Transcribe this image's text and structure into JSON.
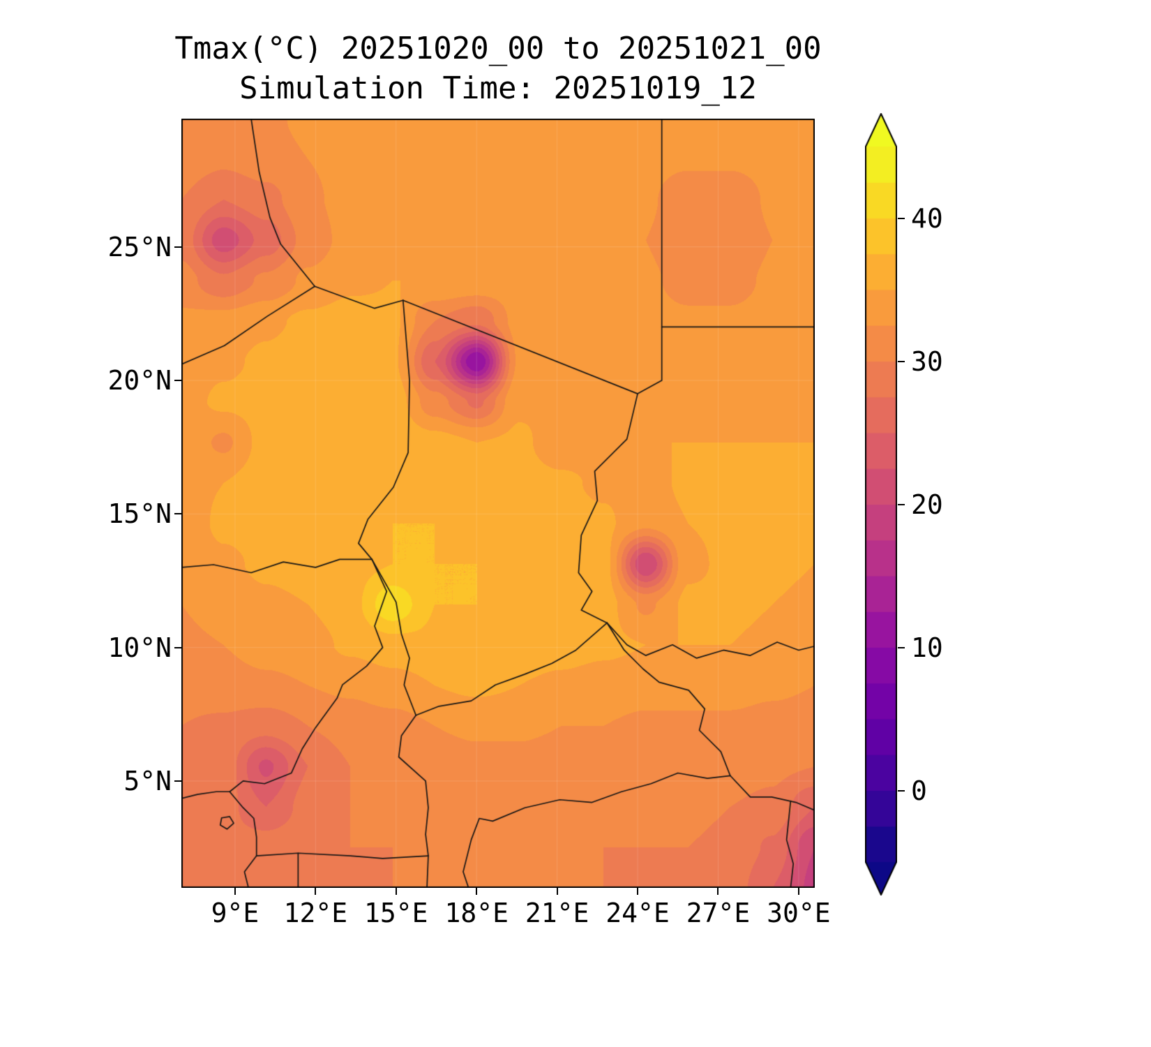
{
  "title": "Tmax(°C) 20251020_00 to 20251021_00",
  "subtitle": "Simulation Time: 20251019_12",
  "colors": {
    "background": "#ffffff",
    "frame": "#000000",
    "text": "#000000",
    "border_lines": "#151515",
    "gridline": "rgba(255,255,255,0.15)"
  },
  "chart_data": {
    "type": "heatmap",
    "variable": "Tmax",
    "units": "°C",
    "valid_period": "20251020_00 to 20251021_00",
    "simulation_time": "20251019_12",
    "lon_range": [
      7.0,
      30.6
    ],
    "lat_range": [
      1.0,
      29.8
    ],
    "x_ticks": [
      {
        "v": 9,
        "label": "9°E"
      },
      {
        "v": 12,
        "label": "12°E"
      },
      {
        "v": 15,
        "label": "15°E"
      },
      {
        "v": 18,
        "label": "18°E"
      },
      {
        "v": 21,
        "label": "21°E"
      },
      {
        "v": 24,
        "label": "24°E"
      },
      {
        "v": 27,
        "label": "27°E"
      },
      {
        "v": 30,
        "label": "30°E"
      }
    ],
    "y_ticks": [
      {
        "v": 5,
        "label": "5°N"
      },
      {
        "v": 10,
        "label": "10°N"
      },
      {
        "v": 15,
        "label": "15°N"
      },
      {
        "v": 20,
        "label": "20°N"
      },
      {
        "v": 25,
        "label": "25°N"
      }
    ],
    "colorbar": {
      "colormap": "plasma",
      "vmin": -5,
      "vmax": 45,
      "step": 2.5,
      "extend": "both",
      "ticks": [
        {
          "v": 0,
          "label": "0"
        },
        {
          "v": 10,
          "label": "10"
        },
        {
          "v": 20,
          "label": "20"
        },
        {
          "v": 30,
          "label": "30"
        },
        {
          "v": 40,
          "label": "40"
        }
      ],
      "stops": [
        "#0d0887",
        "#41049d",
        "#6a00a8",
        "#8f0da4",
        "#b12a90",
        "#cc4778",
        "#e16462",
        "#f1834c",
        "#fca338",
        "#fcce25",
        "#f0f921"
      ]
    },
    "grid": {
      "lons": [
        7.0,
        8.57,
        10.15,
        11.72,
        13.29,
        14.87,
        16.44,
        18.01,
        19.59,
        21.16,
        22.73,
        24.31,
        25.88,
        27.45,
        29.03,
        30.6
      ],
      "lats": [
        29.8,
        28.28,
        26.77,
        25.25,
        23.74,
        22.22,
        20.71,
        19.19,
        17.67,
        16.16,
        14.64,
        13.13,
        11.61,
        10.09,
        8.58,
        7.06,
        5.55,
        4.03,
        2.52,
        1.0
      ],
      "values": [
        [
          32,
          31.5,
          32,
          33,
          33.5,
          34,
          34,
          34,
          34,
          33.5,
          33.5,
          33.5,
          33.5,
          33.5,
          34,
          34
        ],
        [
          31.5,
          30.5,
          31.5,
          32.5,
          33.5,
          34,
          34,
          34,
          34,
          33.5,
          33.5,
          33.5,
          33,
          33,
          33.5,
          34
        ],
        [
          30,
          27.5,
          29,
          32,
          33.5,
          34,
          34,
          34,
          34,
          34,
          33.5,
          33,
          30.5,
          30.5,
          33,
          33.5
        ],
        [
          29,
          21,
          26,
          31,
          33.5,
          34.5,
          34.5,
          34.5,
          34,
          34,
          33.5,
          32.5,
          30,
          30,
          32.5,
          33.5
        ],
        [
          31,
          28,
          30.5,
          33,
          34.5,
          35,
          35,
          34.5,
          34,
          34,
          33.5,
          33,
          31.5,
          31.5,
          33,
          33.5
        ],
        [
          33,
          33.5,
          34.5,
          35.5,
          36,
          35.5,
          30,
          28,
          33.5,
          34,
          34,
          33.5,
          33,
          33,
          33.5,
          33.5
        ],
        [
          33.5,
          34.5,
          35.5,
          36.5,
          36.5,
          35.5,
          25,
          10,
          33,
          34,
          34.5,
          34,
          33.5,
          33.5,
          34,
          34
        ],
        [
          34,
          35.5,
          36,
          36.5,
          37,
          36.5,
          31,
          27,
          34.5,
          35,
          35,
          34.5,
          34,
          34.5,
          34.5,
          34.5
        ],
        [
          34.5,
          32,
          36,
          37,
          37,
          37,
          36,
          35,
          35.5,
          33.5,
          34,
          35,
          35,
          35,
          35,
          35
        ],
        [
          34,
          35,
          36.5,
          37,
          37,
          37.5,
          37,
          36.5,
          36,
          35.5,
          34.5,
          34,
          35.5,
          35.5,
          35.5,
          35
        ],
        [
          33.5,
          35.5,
          36,
          36.5,
          37,
          37.5,
          37.5,
          37,
          36.5,
          36,
          35.5,
          33,
          35,
          35.5,
          35.5,
          35
        ],
        [
          33,
          34.5,
          35.5,
          36,
          36.5,
          37.5,
          37.5,
          37.5,
          37,
          36.5,
          36,
          20,
          34.5,
          35.5,
          35.5,
          35
        ],
        [
          32.5,
          33.5,
          34.5,
          35,
          36.5,
          42,
          37.5,
          37.5,
          37,
          36.5,
          36,
          32,
          35.5,
          35.5,
          35,
          34.5
        ],
        [
          32,
          32.5,
          33.5,
          34,
          35.5,
          36.5,
          37,
          37,
          36.5,
          36,
          35.5,
          35,
          35,
          35,
          34.5,
          34
        ],
        [
          31,
          31.5,
          32,
          32.5,
          33,
          34,
          35,
          35.5,
          35,
          34.5,
          34,
          33.5,
          33.5,
          33.5,
          33,
          32.5
        ],
        [
          30,
          29.5,
          28.5,
          30,
          31,
          31.5,
          32.5,
          33,
          33,
          32.5,
          32.5,
          32,
          32,
          32,
          31.5,
          31
        ],
        [
          29.5,
          29,
          22,
          27.5,
          30,
          30.5,
          31,
          31.5,
          31.5,
          31,
          31,
          31,
          31,
          31,
          30.5,
          30
        ],
        [
          29,
          28.5,
          25,
          28.5,
          30,
          30.5,
          30.5,
          31,
          31,
          30.5,
          30.5,
          30.5,
          30.5,
          30,
          29.5,
          25
        ],
        [
          29,
          28.5,
          29,
          29.5,
          30,
          30,
          30.5,
          30.5,
          30.5,
          30.5,
          30,
          30,
          30,
          29.5,
          27,
          20
        ],
        [
          29,
          29,
          29.5,
          29.5,
          29.5,
          30,
          30,
          30,
          30,
          30,
          30,
          29.5,
          29.5,
          29,
          25,
          19
        ]
      ]
    },
    "borders": [
      {
        "name": "algeria-libya",
        "points": [
          [
            9.6,
            29.8
          ],
          [
            9.9,
            27.8
          ],
          [
            10.3,
            26.1
          ],
          [
            10.7,
            25.1
          ],
          [
            11.97,
            23.52
          ]
        ]
      },
      {
        "name": "algeria-niger",
        "points": [
          [
            11.97,
            23.52
          ],
          [
            10.2,
            22.4
          ],
          [
            8.6,
            21.3
          ],
          [
            7.0,
            20.6
          ]
        ]
      },
      {
        "name": "niger-libya",
        "points": [
          [
            11.97,
            23.52
          ],
          [
            14.2,
            22.7
          ],
          [
            15.26,
            23.0
          ]
        ]
      },
      {
        "name": "libya-chad",
        "points": [
          [
            15.26,
            23.0
          ],
          [
            24.0,
            19.5
          ]
        ]
      },
      {
        "name": "libya-egypt",
        "points": [
          [
            24.9,
            29.8
          ],
          [
            24.9,
            22.0
          ]
        ]
      },
      {
        "name": "libya-sudan",
        "points": [
          [
            24.9,
            22.0
          ],
          [
            24.9,
            20.0
          ],
          [
            24.0,
            19.5
          ]
        ]
      },
      {
        "name": "egypt-sudan",
        "points": [
          [
            24.9,
            22.0
          ],
          [
            30.6,
            22.0
          ]
        ]
      },
      {
        "name": "chad-sudan",
        "points": [
          [
            24.0,
            19.5
          ],
          [
            23.6,
            17.8
          ],
          [
            22.4,
            16.6
          ],
          [
            22.5,
            15.5
          ],
          [
            21.9,
            14.2
          ],
          [
            21.8,
            12.8
          ],
          [
            22.3,
            12.1
          ],
          [
            21.9,
            11.4
          ],
          [
            22.86,
            10.92
          ]
        ]
      },
      {
        "name": "niger-chad",
        "points": [
          [
            15.26,
            23.0
          ],
          [
            15.5,
            20.0
          ],
          [
            15.45,
            17.3
          ],
          [
            14.9,
            16.0
          ],
          [
            13.95,
            14.8
          ],
          [
            13.6,
            13.9
          ],
          [
            14.1,
            13.3
          ]
        ]
      },
      {
        "name": "niger-nigeria",
        "points": [
          [
            7.0,
            13.0
          ],
          [
            8.2,
            13.1
          ],
          [
            9.6,
            12.8
          ],
          [
            10.8,
            13.2
          ],
          [
            12.0,
            13.0
          ],
          [
            12.9,
            13.3
          ],
          [
            13.6,
            13.3
          ],
          [
            14.1,
            13.3
          ]
        ]
      },
      {
        "name": "nigeria-cameroon",
        "points": [
          [
            14.1,
            13.3
          ],
          [
            14.65,
            12.1
          ],
          [
            14.2,
            10.8
          ],
          [
            14.5,
            10.0
          ],
          [
            13.9,
            9.3
          ],
          [
            13.0,
            8.6
          ],
          [
            12.8,
            8.1
          ],
          [
            12.0,
            7.0
          ],
          [
            11.5,
            6.2
          ],
          [
            11.1,
            5.3
          ],
          [
            10.1,
            4.9
          ],
          [
            9.3,
            5.0
          ],
          [
            8.8,
            4.6
          ]
        ]
      },
      {
        "name": "chad-cameroon",
        "points": [
          [
            14.1,
            13.3
          ],
          [
            15.0,
            11.7
          ],
          [
            15.2,
            10.5
          ],
          [
            15.5,
            9.6
          ],
          [
            15.3,
            8.6
          ],
          [
            15.74,
            7.46
          ]
        ]
      },
      {
        "name": "chad-car",
        "points": [
          [
            15.74,
            7.46
          ],
          [
            16.6,
            7.8
          ],
          [
            17.8,
            8.0
          ],
          [
            18.7,
            8.6
          ],
          [
            19.8,
            9.0
          ],
          [
            20.8,
            9.4
          ],
          [
            21.7,
            9.9
          ],
          [
            22.86,
            10.92
          ]
        ]
      },
      {
        "name": "cameroon-car",
        "points": [
          [
            15.74,
            7.46
          ],
          [
            15.2,
            6.7
          ],
          [
            15.1,
            5.9
          ],
          [
            16.1,
            5.0
          ],
          [
            16.2,
            4.0
          ],
          [
            16.1,
            3.0
          ],
          [
            16.2,
            2.2
          ]
        ]
      },
      {
        "name": "car-congo",
        "points": [
          [
            16.2,
            2.2
          ],
          [
            16.15,
            1.0
          ]
        ]
      },
      {
        "name": "sudan-southsudan",
        "points": [
          [
            22.86,
            10.92
          ],
          [
            23.6,
            10.1
          ],
          [
            24.3,
            9.7
          ],
          [
            25.3,
            10.1
          ],
          [
            26.2,
            9.6
          ],
          [
            27.2,
            9.9
          ],
          [
            28.2,
            9.7
          ],
          [
            29.2,
            10.2
          ],
          [
            30.0,
            9.9
          ],
          [
            30.6,
            10.05
          ]
        ]
      },
      {
        "name": "car-southsudan",
        "points": [
          [
            22.86,
            10.92
          ],
          [
            23.5,
            9.9
          ],
          [
            24.2,
            9.2
          ],
          [
            24.8,
            8.7
          ],
          [
            25.9,
            8.4
          ],
          [
            26.5,
            7.7
          ],
          [
            26.3,
            6.9
          ],
          [
            27.1,
            6.1
          ],
          [
            27.45,
            5.2
          ]
        ]
      },
      {
        "name": "car-drc",
        "points": [
          [
            27.45,
            5.2
          ],
          [
            26.6,
            5.1
          ],
          [
            25.5,
            5.3
          ],
          [
            24.5,
            4.9
          ],
          [
            23.4,
            4.6
          ],
          [
            22.3,
            4.2
          ],
          [
            21.1,
            4.3
          ],
          [
            19.8,
            4.0
          ],
          [
            18.6,
            3.5
          ],
          [
            18.1,
            3.6
          ],
          [
            17.8,
            2.8
          ],
          [
            17.5,
            1.6
          ],
          [
            17.7,
            1.0
          ]
        ]
      },
      {
        "name": "southsudan-drc",
        "points": [
          [
            27.45,
            5.2
          ],
          [
            28.2,
            4.4
          ],
          [
            29.0,
            4.4
          ],
          [
            29.9,
            4.2
          ],
          [
            30.6,
            3.9
          ]
        ]
      },
      {
        "name": "uganda-drc",
        "points": [
          [
            29.7,
            4.25
          ],
          [
            29.55,
            2.8
          ],
          [
            29.8,
            1.9
          ],
          [
            29.7,
            1.0
          ]
        ]
      },
      {
        "name": "cameroon-gabon-congo",
        "points": [
          [
            9.8,
            2.2
          ],
          [
            11.35,
            2.3
          ],
          [
            13.3,
            2.2
          ],
          [
            14.5,
            2.1
          ],
          [
            16.2,
            2.2
          ]
        ]
      },
      {
        "name": "gabon-eqguinea",
        "points": [
          [
            11.35,
            2.3
          ],
          [
            11.35,
            1.0
          ]
        ]
      },
      {
        "name": "coastline",
        "points": [
          [
            7.0,
            4.35
          ],
          [
            7.6,
            4.5
          ],
          [
            8.3,
            4.6
          ],
          [
            8.8,
            4.6
          ],
          [
            9.3,
            4.0
          ],
          [
            9.7,
            3.6
          ],
          [
            9.8,
            2.9
          ],
          [
            9.8,
            2.2
          ],
          [
            9.35,
            1.6
          ],
          [
            9.5,
            1.0
          ]
        ]
      },
      {
        "name": "bioko-island",
        "points": [
          [
            8.5,
            3.62
          ],
          [
            8.8,
            3.67
          ],
          [
            8.95,
            3.42
          ],
          [
            8.7,
            3.2
          ],
          [
            8.45,
            3.35
          ],
          [
            8.5,
            3.62
          ]
        ]
      }
    ]
  }
}
